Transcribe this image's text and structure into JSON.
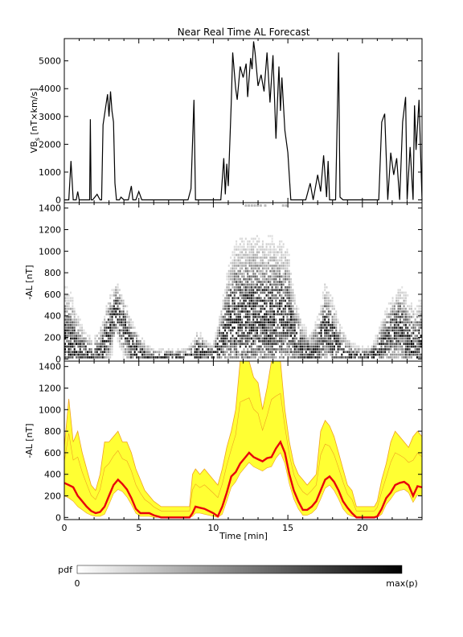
{
  "title": "Near Real Time AL Forecast",
  "colors": {
    "median_line": "#e8000b",
    "band_fill": "#ffff33",
    "band_edge": "#f0a020",
    "axis": "#000000"
  },
  "chart_data": [
    {
      "type": "line",
      "ylabel": "VB_s [nT×km/s]",
      "ylabel_main": "VB",
      "ylabel_sub": "s",
      "ylabel_unit": " [nT×km/s]",
      "xlim": [
        0,
        24
      ],
      "ylim": [
        -100,
        5800
      ],
      "yticks": [
        0,
        1000,
        2000,
        3000,
        4000,
        5000
      ],
      "series": [
        {
          "x": [
            0,
            0.3,
            0.45,
            0.6,
            0.8,
            0.9,
            1.0,
            1.2,
            1.4,
            1.7,
            1.75,
            1.8,
            1.9,
            2.2,
            2.4,
            2.5,
            2.6,
            2.9,
            3.0,
            3.1,
            3.2,
            3.3,
            3.4,
            3.5,
            3.7,
            3.8,
            4.0,
            4.3,
            4.5,
            4.6,
            4.8,
            5.0,
            5.2,
            6,
            7,
            7.5,
            8.3,
            8.5,
            8.7,
            8.8,
            9.0,
            10.5,
            10.7,
            10.8,
            10.9,
            11.0,
            11.2,
            11.3,
            11.5,
            11.6,
            11.8,
            12.0,
            12.2,
            12.3,
            12.5,
            12.6,
            12.7,
            12.8,
            13.0,
            13.2,
            13.4,
            13.6,
            13.8,
            14.0,
            14.2,
            14.4,
            14.5,
            14.6,
            14.8,
            15.0,
            15.2,
            15.3,
            15.4,
            15.6,
            15.8,
            16.0,
            16.2,
            16.5,
            16.7,
            17.0,
            17.2,
            17.4,
            17.6,
            17.7,
            17.8,
            18.0,
            18.2,
            18.4,
            18.5,
            18.7,
            19.0,
            19.5,
            20.0,
            20.5,
            21.0,
            21.1,
            21.3,
            21.5,
            21.7,
            21.9,
            22.1,
            22.3,
            22.5,
            22.7,
            22.9,
            23.0,
            23.2,
            23.4,
            23.5,
            23.6,
            23.8,
            24.0
          ],
          "values": [
            0,
            0,
            1400,
            0,
            0,
            300,
            0,
            0,
            0,
            0,
            2900,
            0,
            0,
            200,
            0,
            0,
            2700,
            3800,
            3000,
            3900,
            3200,
            2800,
            600,
            0,
            0,
            100,
            0,
            0,
            500,
            0,
            0,
            300,
            0,
            0,
            0,
            0,
            0,
            400,
            3600,
            0,
            0,
            0,
            1500,
            200,
            1300,
            500,
            3500,
            5300,
            4000,
            3600,
            4800,
            4400,
            4900,
            3700,
            5100,
            4700,
            5700,
            5300,
            4100,
            4500,
            3900,
            5300,
            3500,
            5200,
            2200,
            4800,
            3200,
            4400,
            2500,
            1700,
            0,
            0,
            0,
            0,
            0,
            0,
            0,
            600,
            0,
            900,
            300,
            1600,
            100,
            1400,
            0,
            0,
            0,
            5300,
            100,
            0,
            0,
            0,
            0,
            0,
            0,
            0,
            2800,
            3100,
            0,
            1700,
            900,
            1500,
            0,
            2800,
            3700,
            0,
            1900,
            0,
            3400,
            1800,
            3600,
            0
          ]
        }
      ]
    },
    {
      "type": "heatmap",
      "ylabel": "-AL [nT]",
      "xlim": [
        0,
        24
      ],
      "ylim": [
        -20,
        1450
      ],
      "yticks": [
        0,
        200,
        400,
        600,
        800,
        1000,
        1200,
        1400
      ],
      "colorbar": {
        "label": "pdf",
        "min_label": "0",
        "max_label": "max(p)"
      },
      "centerline": {
        "x": [
          0,
          0.5,
          1,
          1.5,
          2,
          2.5,
          3,
          3.5,
          4,
          4.5,
          5,
          5.5,
          6,
          6.5,
          7,
          7.5,
          8,
          8.5,
          9,
          9.5,
          10,
          10.5,
          11,
          11.5,
          12,
          12.5,
          13,
          13.5,
          14,
          14.5,
          15,
          15.5,
          16,
          16.5,
          17,
          17.5,
          18,
          18.5,
          19,
          19.5,
          20,
          20.5,
          21,
          21.5,
          22,
          22.5,
          23,
          23.5,
          24
        ],
        "values": [
          180,
          120,
          60,
          40,
          30,
          60,
          250,
          450,
          300,
          120,
          60,
          20,
          10,
          10,
          10,
          10,
          10,
          20,
          60,
          30,
          20,
          150,
          350,
          380,
          380,
          380,
          380,
          380,
          380,
          380,
          400,
          200,
          80,
          40,
          100,
          300,
          200,
          80,
          30,
          10,
          10,
          10,
          40,
          150,
          250,
          300,
          200,
          100,
          150
        ]
      },
      "spread": {
        "values": [
          700,
          650,
          400,
          250,
          200,
          350,
          600,
          750,
          600,
          400,
          250,
          150,
          100,
          100,
          100,
          100,
          100,
          150,
          300,
          200,
          150,
          450,
          900,
          1150,
          1180,
          1200,
          1200,
          1150,
          1180,
          1150,
          1100,
          600,
          350,
          250,
          400,
          750,
          600,
          350,
          200,
          150,
          120,
          120,
          250,
          450,
          600,
          700,
          650,
          500,
          600
        ]
      },
      "outliers": {
        "x": [
          12.1,
          12.3,
          12.5,
          12.7,
          12.9,
          13.1,
          13.4,
          14.6,
          14.8
        ],
        "values": [
          1420,
          1420,
          1420,
          1420,
          1420,
          1420,
          1420,
          1420,
          1420
        ]
      }
    },
    {
      "type": "area",
      "ylabel": "-AL [nT]",
      "xlabel": "Time [min]",
      "xlim": [
        0,
        24
      ],
      "ylim": [
        -20,
        1450
      ],
      "xticks": [
        0,
        5,
        10,
        15,
        20
      ],
      "yticks": [
        0,
        200,
        400,
        600,
        800,
        1000,
        1200,
        1400
      ],
      "series": [
        {
          "name": "median",
          "x": [
            0,
            0.3,
            0.6,
            0.9,
            1.2,
            1.5,
            1.8,
            2.1,
            2.4,
            2.7,
            3.0,
            3.3,
            3.6,
            3.9,
            4.2,
            4.5,
            4.8,
            5.1,
            5.4,
            5.7,
            6.0,
            6.5,
            7,
            7.5,
            8,
            8.4,
            8.6,
            8.8,
            9.1,
            9.4,
            9.7,
            10.0,
            10.3,
            10.6,
            10.9,
            11.2,
            11.5,
            11.8,
            12.1,
            12.4,
            12.7,
            13.0,
            13.3,
            13.6,
            13.9,
            14.2,
            14.5,
            14.8,
            15.1,
            15.4,
            15.7,
            16.0,
            16.3,
            16.6,
            16.9,
            17.2,
            17.5,
            17.8,
            18.1,
            18.4,
            18.7,
            19.0,
            19.3,
            19.6,
            20.0,
            20.4,
            20.8,
            21.0,
            21.3,
            21.6,
            21.9,
            22.2,
            22.5,
            22.8,
            23.1,
            23.4,
            23.7,
            24.0
          ],
          "values": [
            320,
            300,
            280,
            200,
            150,
            100,
            60,
            40,
            50,
            100,
            200,
            300,
            350,
            310,
            260,
            180,
            80,
            40,
            40,
            40,
            20,
            0,
            0,
            0,
            0,
            0,
            40,
            100,
            90,
            80,
            60,
            40,
            10,
            100,
            230,
            380,
            420,
            500,
            550,
            600,
            560,
            540,
            520,
            550,
            560,
            640,
            700,
            600,
            400,
            250,
            150,
            70,
            70,
            100,
            150,
            250,
            350,
            380,
            330,
            250,
            150,
            90,
            40,
            0,
            0,
            0,
            0,
            10,
            80,
            180,
            230,
            300,
            320,
            330,
            300,
            200,
            290,
            280
          ]
        },
        {
          "name": "lower",
          "values": [
            200,
            180,
            150,
            100,
            70,
            40,
            20,
            10,
            10,
            30,
            120,
            220,
            260,
            240,
            190,
            120,
            40,
            10,
            10,
            10,
            0,
            0,
            0,
            0,
            0,
            0,
            10,
            40,
            40,
            30,
            20,
            10,
            0,
            30,
            150,
            280,
            330,
            410,
            460,
            510,
            470,
            450,
            430,
            460,
            470,
            550,
            600,
            500,
            310,
            170,
            80,
            20,
            20,
            40,
            80,
            170,
            270,
            300,
            250,
            170,
            80,
            30,
            10,
            0,
            0,
            0,
            0,
            0,
            30,
            120,
            170,
            230,
            250,
            260,
            230,
            140,
            210,
            200
          ]
        },
        {
          "name": "upper",
          "values": [
            650,
            1100,
            700,
            800,
            600,
            450,
            300,
            250,
            400,
            700,
            700,
            750,
            800,
            700,
            700,
            600,
            450,
            350,
            250,
            200,
            150,
            100,
            100,
            100,
            100,
            100,
            400,
            450,
            400,
            450,
            400,
            350,
            300,
            450,
            650,
            800,
            1000,
            1450,
            1450,
            1450,
            1300,
            1250,
            1000,
            1200,
            1450,
            1450,
            1450,
            1000,
            700,
            500,
            400,
            350,
            300,
            350,
            400,
            800,
            900,
            850,
            750,
            600,
            450,
            300,
            250,
            100,
            100,
            100,
            100,
            150,
            350,
            500,
            700,
            800,
            750,
            700,
            650,
            750,
            800,
            750
          ]
        }
      ]
    }
  ]
}
